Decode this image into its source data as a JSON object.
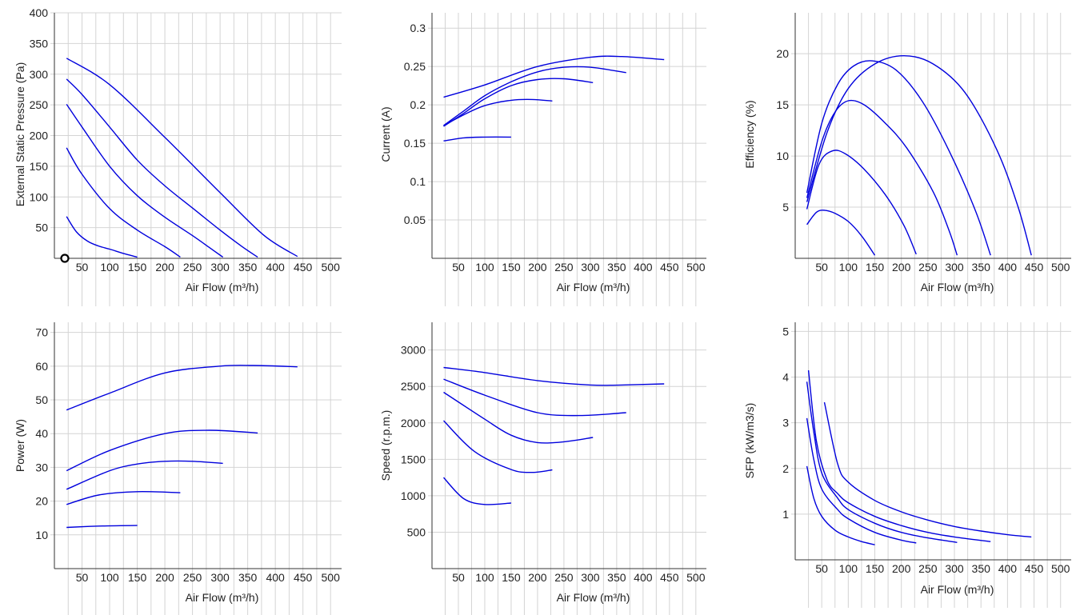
{
  "colors": {
    "series": "#0000dd",
    "grid": "#d4d4d4",
    "axis": "#333333",
    "text": "#222222"
  },
  "chart_data": [
    {
      "name": "pressure",
      "type": "line",
      "xlabel": "Air Flow (m³/h)",
      "ylabel": "External Static Pressure (Pa)",
      "xlim": [
        0,
        520
      ],
      "ylim": [
        0,
        400
      ],
      "xticks": [
        50,
        100,
        150,
        200,
        250,
        300,
        350,
        400,
        450,
        500
      ],
      "yticks": [
        50,
        100,
        150,
        200,
        250,
        300,
        350,
        400
      ],
      "origin_marker": true,
      "series": [
        {
          "x": [
            22,
            100,
            200,
            300,
            380,
            440
          ],
          "y": [
            326,
            283,
            197,
            107,
            37,
            3
          ]
        },
        {
          "x": [
            22,
            50,
            100,
            150,
            200,
            250,
            300,
            340,
            368
          ],
          "y": [
            292,
            267,
            214,
            160,
            118,
            82,
            46,
            19,
            2
          ]
        },
        {
          "x": [
            22,
            50,
            100,
            150,
            200,
            250,
            280,
            305
          ],
          "y": [
            251,
            214,
            150,
            102,
            67,
            37,
            18,
            2
          ]
        },
        {
          "x": [
            22,
            50,
            100,
            150,
            200,
            228
          ],
          "y": [
            180,
            137,
            81,
            46,
            19,
            2
          ]
        },
        {
          "x": [
            22,
            40,
            60,
            80,
            100,
            125,
            150
          ],
          "y": [
            68,
            43,
            28,
            20,
            15,
            8,
            2
          ]
        }
      ]
    },
    {
      "name": "current",
      "type": "line",
      "xlabel": "Air Flow (m³/h)",
      "ylabel": "Current (A)",
      "xlim": [
        0,
        520
      ],
      "ylim": [
        0,
        0.32
      ],
      "xticks": [
        50,
        100,
        150,
        200,
        250,
        300,
        350,
        400,
        450,
        500
      ],
      "yticks": [
        0.05,
        0.1,
        0.15,
        0.2,
        0.25,
        0.3
      ],
      "series": [
        {
          "x": [
            22,
            100,
            200,
            300,
            360,
            440
          ],
          "y": [
            0.21,
            0.226,
            0.25,
            0.262,
            0.263,
            0.259
          ]
        },
        {
          "x": [
            22,
            60,
            100,
            150,
            200,
            250,
            300,
            368
          ],
          "y": [
            0.173,
            0.192,
            0.212,
            0.23,
            0.243,
            0.249,
            0.249,
            0.242
          ]
        },
        {
          "x": [
            22,
            60,
            100,
            150,
            200,
            250,
            305
          ],
          "y": [
            0.172,
            0.189,
            0.208,
            0.225,
            0.233,
            0.234,
            0.229
          ]
        },
        {
          "x": [
            22,
            60,
            100,
            150,
            190,
            228
          ],
          "y": [
            0.173,
            0.187,
            0.199,
            0.206,
            0.207,
            0.205
          ]
        },
        {
          "x": [
            22,
            60,
            100,
            150
          ],
          "y": [
            0.153,
            0.157,
            0.158,
            0.158
          ]
        }
      ]
    },
    {
      "name": "efficiency",
      "type": "line",
      "xlabel": "Air Flow (m³/h)",
      "ylabel": "Efficiency (%)",
      "xlim": [
        0,
        520
      ],
      "ylim": [
        0,
        24
      ],
      "xticks": [
        50,
        100,
        150,
        200,
        250,
        300,
        350,
        400,
        450,
        500
      ],
      "yticks": [
        5,
        10,
        15,
        20
      ],
      "series": [
        {
          "x": [
            22,
            60,
            100,
            150,
            205,
            260,
            320,
            380,
            420,
            445
          ],
          "y": [
            5.5,
            12.3,
            16.6,
            19.0,
            19.8,
            19.0,
            16.2,
            10.6,
            5.0,
            0.3
          ]
        },
        {
          "x": [
            22,
            50,
            80,
            110,
            145,
            190,
            240,
            290,
            340,
            368
          ],
          "y": [
            6.4,
            13.2,
            17.0,
            18.8,
            19.3,
            18.4,
            15.3,
            10.5,
            4.6,
            0.3
          ]
        },
        {
          "x": [
            22,
            50,
            75,
            100,
            130,
            170,
            210,
            260,
            290,
            305
          ],
          "y": [
            5.9,
            11.4,
            14.3,
            15.4,
            15.0,
            13.2,
            10.8,
            6.5,
            2.7,
            0.3
          ]
        },
        {
          "x": [
            22,
            45,
            70,
            95,
            130,
            170,
            205,
            228
          ],
          "y": [
            4.8,
            9.2,
            10.5,
            10.2,
            8.7,
            6.2,
            3.2,
            0.4
          ]
        },
        {
          "x": [
            22,
            40,
            55,
            75,
            100,
            125,
            150
          ],
          "y": [
            3.3,
            4.5,
            4.7,
            4.4,
            3.6,
            2.2,
            0.3
          ]
        }
      ]
    },
    {
      "name": "power",
      "type": "line",
      "xlabel": "Air Flow (m³/h)",
      "ylabel": "Power (W)",
      "xlim": [
        0,
        520
      ],
      "ylim": [
        0,
        73
      ],
      "xticks": [
        50,
        100,
        150,
        200,
        250,
        300,
        350,
        400,
        450,
        500
      ],
      "yticks": [
        10,
        20,
        30,
        40,
        50,
        60,
        70
      ],
      "series": [
        {
          "x": [
            22,
            100,
            200,
            300,
            360,
            440
          ],
          "y": [
            47,
            52,
            58,
            60,
            60.2,
            59.8
          ]
        },
        {
          "x": [
            22,
            100,
            200,
            280,
            368
          ],
          "y": [
            29,
            35,
            40,
            41,
            40.2
          ]
        },
        {
          "x": [
            22,
            100,
            150,
            200,
            250,
            305
          ],
          "y": [
            23.5,
            29,
            31,
            31.8,
            31.8,
            31.2
          ]
        },
        {
          "x": [
            22,
            80,
            150,
            228
          ],
          "y": [
            19,
            21.8,
            22.8,
            22.5
          ]
        },
        {
          "x": [
            22,
            80,
            150
          ],
          "y": [
            12.2,
            12.6,
            12.8
          ]
        }
      ]
    },
    {
      "name": "speed",
      "type": "line",
      "xlabel": "Air Flow (m³/h)",
      "ylabel": "Speed (r.p.m.)",
      "xlim": [
        0,
        520
      ],
      "ylim": [
        0,
        3380
      ],
      "xticks": [
        50,
        100,
        150,
        200,
        250,
        300,
        350,
        400,
        450,
        500
      ],
      "yticks": [
        500,
        1000,
        1500,
        2000,
        2500,
        3000
      ],
      "series": [
        {
          "x": [
            22,
            100,
            200,
            300,
            360,
            440
          ],
          "y": [
            2760,
            2690,
            2580,
            2520,
            2520,
            2535
          ]
        },
        {
          "x": [
            22,
            100,
            200,
            280,
            368
          ],
          "y": [
            2600,
            2380,
            2140,
            2100,
            2140
          ]
        },
        {
          "x": [
            22,
            100,
            150,
            200,
            250,
            305
          ],
          "y": [
            2420,
            2050,
            1830,
            1730,
            1740,
            1800
          ]
        },
        {
          "x": [
            22,
            80,
            150,
            190,
            228
          ],
          "y": [
            2030,
            1610,
            1360,
            1320,
            1355
          ]
        },
        {
          "x": [
            22,
            60,
            100,
            150
          ],
          "y": [
            1250,
            960,
            880,
            900
          ]
        }
      ]
    },
    {
      "name": "sfp",
      "type": "line",
      "xlabel": "Air Flow (m³/h)",
      "ylabel": "SFP (kW/m3/s)",
      "xlim": [
        0,
        520
      ],
      "ylim": [
        0,
        5.2
      ],
      "xticks": [
        50,
        100,
        150,
        200,
        250,
        300,
        350,
        400,
        450,
        500
      ],
      "yticks": [
        1,
        2,
        3,
        4,
        5
      ],
      "series": [
        {
          "x": [
            55,
            80,
            100,
            150,
            200,
            250,
            300,
            350,
            400,
            445
          ],
          "y": [
            3.45,
            2.1,
            1.7,
            1.3,
            1.05,
            0.87,
            0.73,
            0.63,
            0.55,
            0.5
          ]
        },
        {
          "x": [
            25,
            40,
            60,
            80,
            100,
            150,
            200,
            250,
            300,
            368
          ],
          "y": [
            4.15,
            2.6,
            1.75,
            1.45,
            1.25,
            0.95,
            0.75,
            0.6,
            0.5,
            0.4
          ]
        },
        {
          "x": [
            22,
            35,
            50,
            80,
            100,
            150,
            200,
            250,
            305
          ],
          "y": [
            3.9,
            2.8,
            1.9,
            1.35,
            1.1,
            0.8,
            0.6,
            0.48,
            0.38
          ]
        },
        {
          "x": [
            22,
            35,
            50,
            80,
            100,
            150,
            200,
            228
          ],
          "y": [
            3.1,
            2.2,
            1.55,
            1.1,
            0.9,
            0.6,
            0.43,
            0.37
          ]
        },
        {
          "x": [
            22,
            35,
            50,
            75,
            100,
            125,
            150
          ],
          "y": [
            2.05,
            1.35,
            0.95,
            0.65,
            0.5,
            0.4,
            0.33
          ]
        }
      ]
    }
  ]
}
